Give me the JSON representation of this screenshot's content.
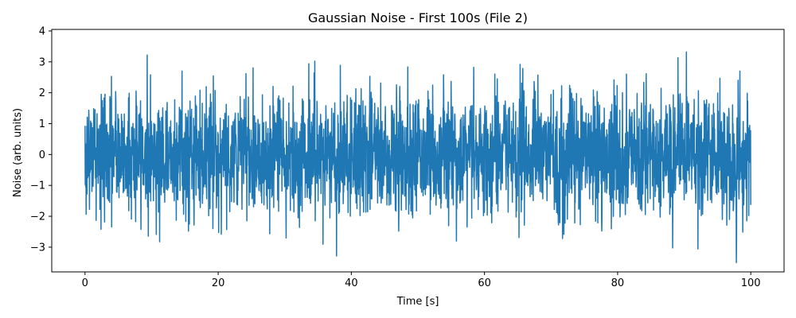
{
  "chart_data": {
    "type": "line",
    "title": "Gaussian Noise - First 100s (File 2)",
    "xlabel": "Time [s]",
    "ylabel": "Noise (arb. units)",
    "xlim": [
      -5,
      105
    ],
    "ylim": [
      -3.8,
      4.05
    ],
    "x_ticks": [
      0,
      20,
      40,
      60,
      80,
      100
    ],
    "x_tick_labels": [
      "0",
      "20",
      "40",
      "60",
      "80",
      "100"
    ],
    "y_ticks": [
      -3,
      -2,
      -1,
      0,
      1,
      2,
      3,
      4
    ],
    "y_tick_labels": [
      "−3",
      "−2",
      "−1",
      "0",
      "1",
      "2",
      "3",
      "4"
    ],
    "grid": false,
    "legend": "none",
    "series": [
      {
        "color": "#1f77b4",
        "x_start": 0,
        "x_end": 100,
        "mean": 0,
        "std": 1.0,
        "observed_max": 3.65,
        "observed_min": -3.5
      }
    ]
  }
}
